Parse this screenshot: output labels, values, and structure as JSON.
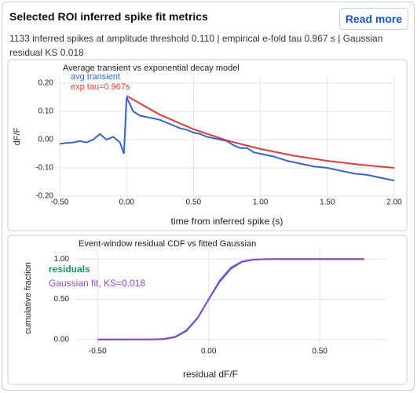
{
  "header": {
    "title": "Selected ROI inferred spike fit metrics",
    "button": "Read more",
    "subtitle": "1133 inferred spikes at amplitude threshold 0.110 | empirical e-fold tau 0.967 s | Gaussian residual KS 0.018"
  },
  "chart_data": [
    {
      "type": "line",
      "title": "Average transient vs exponential decay model",
      "x_label": "time from inferred spike (s)",
      "y_label": "dF/F",
      "xlim": [
        -0.5,
        2.0
      ],
      "ylim": [
        -0.2,
        0.225
      ],
      "xticks": [
        {
          "value": -0.5,
          "label": "-0.50"
        },
        {
          "value": 0,
          "label": "0.00"
        },
        {
          "value": 0.5,
          "label": "0.50"
        },
        {
          "value": 1,
          "label": "1.00"
        },
        {
          "value": 1.5,
          "label": "1.50"
        },
        {
          "value": 2,
          "label": "2.00"
        }
      ],
      "yticks": [
        {
          "value": 0.2,
          "label": "0.20"
        },
        {
          "value": 0.1,
          "label": "0.10"
        },
        {
          "value": 0,
          "label": "0.00"
        },
        {
          "value": -0.1,
          "label": "-0.10"
        },
        {
          "value": -0.2,
          "label": "-0.20"
        }
      ],
      "grid": true,
      "legend": "top-left",
      "series": [
        {
          "name": "avg transient",
          "color": "#3366cc",
          "x": [
            -0.5,
            -0.45,
            -0.4,
            -0.35,
            -0.3,
            -0.25,
            -0.2,
            -0.15,
            -0.1,
            -0.05,
            -0.02,
            0,
            0.05,
            0.1,
            0.15,
            0.2,
            0.25,
            0.3,
            0.35,
            0.4,
            0.45,
            0.5,
            0.55,
            0.6,
            0.65,
            0.7,
            0.75,
            0.8,
            0.85,
            0.9,
            0.95,
            1.0,
            1.1,
            1.2,
            1.3,
            1.4,
            1.5,
            1.6,
            1.7,
            1.8,
            1.9,
            2.0
          ],
          "values": [
            -0.015,
            -0.012,
            -0.01,
            -0.005,
            -0.01,
            0.0,
            0.02,
            0.0,
            0.01,
            -0.01,
            -0.05,
            0.15,
            0.1,
            0.085,
            0.08,
            0.075,
            0.07,
            0.06,
            0.05,
            0.04,
            0.035,
            0.025,
            0.02,
            0.01,
            0.005,
            0.0,
            -0.005,
            -0.02,
            -0.03,
            -0.03,
            -0.045,
            -0.05,
            -0.06,
            -0.075,
            -0.085,
            -0.095,
            -0.1,
            -0.11,
            -0.12,
            -0.125,
            -0.135,
            -0.145
          ]
        },
        {
          "name": "exp tau=0.967s",
          "color": "#e53935",
          "x": [
            0,
            0.25,
            0.5,
            0.75,
            1.0,
            1.25,
            1.5,
            1.75,
            2.0
          ],
          "values": [
            0.155,
            0.088,
            0.037,
            -0.003,
            -0.033,
            -0.057,
            -0.075,
            -0.089,
            -0.1
          ]
        }
      ]
    },
    {
      "type": "line",
      "title": "Event-window residual CDF vs fitted Gaussian",
      "x_label": "residual dF/F",
      "y_label": "cumulative fraction",
      "xlim": [
        -0.6,
        0.8
      ],
      "ylim": [
        -0.07,
        1.12
      ],
      "xticks": [
        {
          "value": -0.5,
          "label": "-0.50"
        },
        {
          "value": 0,
          "label": "0.00"
        },
        {
          "value": 0.5,
          "label": "0.50"
        }
      ],
      "yticks": [
        {
          "value": 1,
          "label": "1.00"
        },
        {
          "value": 0.5,
          "label": "0.50"
        },
        {
          "value": 0,
          "label": "0.00"
        }
      ],
      "grid": true,
      "legend": "top-left",
      "series": [
        {
          "name": "residuals",
          "color": "#1a9a5a",
          "x": [
            -0.5,
            -0.25,
            -0.2,
            -0.15,
            -0.1,
            -0.05,
            0,
            0.05,
            0.1,
            0.15,
            0.2,
            0.25,
            0.3,
            0.7
          ],
          "values": [
            0,
            0.002,
            0.008,
            0.035,
            0.115,
            0.27,
            0.5,
            0.72,
            0.88,
            0.965,
            0.992,
            0.999,
            1,
            1
          ]
        },
        {
          "name": "Gaussian fit, KS=0.018",
          "color": "#8e44dd",
          "x": [
            -0.5,
            -0.25,
            -0.2,
            -0.15,
            -0.1,
            -0.05,
            0,
            0.05,
            0.1,
            0.15,
            0.2,
            0.25,
            0.3,
            0.7
          ],
          "values": [
            0,
            0.001,
            0.006,
            0.03,
            0.106,
            0.266,
            0.5,
            0.734,
            0.894,
            0.97,
            0.994,
            0.999,
            1,
            1
          ]
        }
      ]
    }
  ]
}
